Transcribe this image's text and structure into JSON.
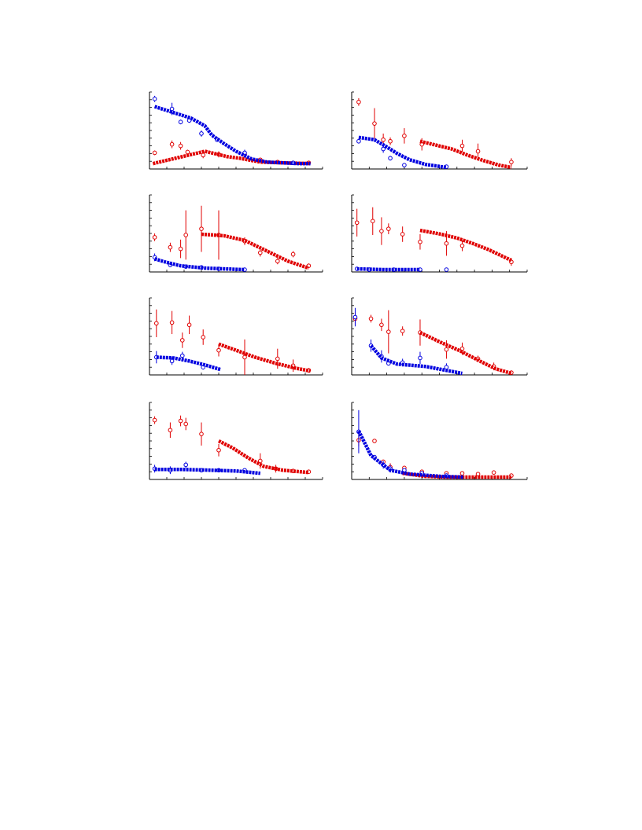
{
  "chart_data": [
    {
      "type": "scatter",
      "xlim": [
        0,
        100
      ],
      "ylim": [
        0,
        100
      ],
      "xticks": [
        0,
        10,
        20,
        30,
        40,
        50,
        60,
        70,
        80,
        90,
        100
      ],
      "yticks": [
        0,
        10,
        20,
        30,
        40,
        50,
        60,
        70,
        80,
        90,
        100
      ],
      "series": [
        {
          "color": "#e00000",
          "marker": "open-circle",
          "x": [
            3,
            13,
            18,
            22,
            31,
            40,
            55,
            64,
            74,
            83,
            92
          ],
          "values": [
            21,
            32,
            30,
            22,
            18,
            19,
            19,
            12,
            9,
            8,
            8
          ],
          "errors": [
            3,
            5,
            5,
            3,
            4,
            4,
            3,
            2,
            null,
            null,
            null
          ]
        },
        {
          "color": "#e00000",
          "marker": "line",
          "x": [
            2,
            32,
            45,
            52,
            64,
            77,
            93
          ],
          "values": [
            7,
            23,
            16,
            14,
            9,
            8,
            7
          ]
        },
        {
          "color": "#0000e0",
          "marker": "open-circle",
          "x": [
            3,
            13,
            18,
            23,
            30,
            39,
            55,
            83
          ],
          "values": [
            91,
            78,
            61,
            63,
            46,
            38,
            21,
            8
          ],
          "errors": [
            4,
            8,
            3,
            3,
            4,
            null,
            4,
            null
          ]
        },
        {
          "color": "#0000e0",
          "marker": "line",
          "x": [
            3,
            24,
            32,
            36,
            43,
            50,
            59,
            68,
            86,
            93
          ],
          "values": [
            81,
            66,
            56,
            44,
            33,
            23,
            13,
            9,
            7,
            7
          ]
        }
      ]
    },
    {
      "type": "scatter",
      "xlim": [
        0,
        100
      ],
      "ylim": [
        0,
        100
      ],
      "xticks": [
        0,
        10,
        20,
        30,
        40,
        50,
        60,
        70,
        80,
        90,
        100
      ],
      "yticks": [
        0,
        10,
        20,
        30,
        40,
        50,
        60,
        70,
        80,
        90,
        100
      ],
      "series": [
        {
          "color": "#e00000",
          "marker": "open-circle",
          "x": [
            4,
            13,
            18,
            22,
            30,
            40,
            63,
            72,
            91
          ],
          "values": [
            87,
            59,
            38,
            36,
            43,
            32,
            30,
            23,
            9
          ],
          "errors": [
            5,
            20,
            8,
            5,
            10,
            8,
            8,
            10,
            5
          ]
        },
        {
          "color": "#e00000",
          "marker": "line",
          "x": [
            39,
            48,
            57,
            66,
            75,
            84,
            91
          ],
          "values": [
            36,
            31,
            26,
            18,
            11,
            5,
            2
          ]
        },
        {
          "color": "#0000e0",
          "marker": "open-circle",
          "x": [
            4,
            18,
            22,
            30,
            54
          ],
          "values": [
            36,
            26,
            14,
            5,
            3
          ],
          "errors": [
            3,
            5,
            3,
            null,
            null
          ]
        },
        {
          "color": "#0000e0",
          "marker": "line",
          "x": [
            4,
            13,
            19,
            26,
            33,
            42,
            54
          ],
          "values": [
            41,
            38,
            30,
            20,
            12,
            6,
            2
          ]
        }
      ]
    },
    {
      "type": "scatter",
      "xlim": [
        0,
        100
      ],
      "ylim": [
        0,
        100
      ],
      "xticks": [
        0,
        10,
        20,
        30,
        40,
        50,
        60,
        70,
        80,
        90,
        100
      ],
      "yticks": [
        0,
        10,
        20,
        30,
        40,
        50,
        60,
        70,
        80,
        90,
        100
      ],
      "series": [
        {
          "color": "#e00000",
          "marker": "open-circle",
          "x": [
            3,
            12,
            18,
            21,
            30,
            40,
            55,
            64,
            74,
            83,
            92
          ],
          "values": [
            45,
            32,
            30,
            48,
            56,
            48,
            40,
            25,
            14,
            23,
            8
          ],
          "errors": [
            5,
            6,
            12,
            32,
            30,
            32,
            5,
            5,
            4,
            4,
            3
          ]
        },
        {
          "color": "#e00000",
          "marker": "line",
          "x": [
            30,
            43,
            55,
            68,
            80,
            92
          ],
          "values": [
            49,
            47,
            41,
            27,
            14,
            5
          ]
        },
        {
          "color": "#0000e0",
          "marker": "open-circle",
          "x": [
            3,
            12,
            21,
            30,
            40,
            55
          ],
          "values": [
            19,
            9,
            7,
            6,
            4,
            3
          ],
          "errors": [
            5,
            null,
            null,
            null,
            null,
            null
          ]
        },
        {
          "color": "#0000e0",
          "marker": "line",
          "x": [
            3,
            9,
            18,
            32,
            55
          ],
          "values": [
            17,
            13,
            8,
            5,
            3
          ]
        }
      ]
    },
    {
      "type": "scatter",
      "xlim": [
        0,
        100
      ],
      "ylim": [
        0,
        100
      ],
      "xticks": [
        0,
        10,
        20,
        30,
        40,
        50,
        60,
        70,
        80,
        90,
        100
      ],
      "yticks": [
        0,
        10,
        20,
        30,
        40,
        50,
        60,
        70,
        80,
        90,
        100
      ],
      "series": [
        {
          "color": "#e00000",
          "marker": "open-circle",
          "x": [
            3,
            12,
            17,
            21,
            29,
            39,
            54,
            63,
            91
          ],
          "values": [
            64,
            66,
            53,
            56,
            49,
            39,
            37,
            34,
            13
          ],
          "errors": [
            18,
            18,
            18,
            7,
            10,
            10,
            16,
            7,
            5
          ]
        },
        {
          "color": "#e00000",
          "marker": "line",
          "x": [
            39,
            51,
            60,
            69,
            78,
            91
          ],
          "values": [
            54,
            49,
            44,
            37,
            29,
            15
          ]
        },
        {
          "color": "#0000e0",
          "marker": "open-circle",
          "x": [
            3,
            10,
            24,
            39,
            54
          ],
          "values": [
            4,
            3,
            3,
            3,
            3
          ],
          "errors": [
            null,
            null,
            null,
            null,
            null
          ]
        },
        {
          "color": "#0000e0",
          "marker": "line",
          "x": [
            3,
            19,
            39
          ],
          "values": [
            4,
            3,
            3
          ]
        }
      ]
    },
    {
      "type": "scatter",
      "xlim": [
        0,
        100
      ],
      "ylim": [
        0,
        100
      ],
      "xticks": [
        0,
        10,
        20,
        30,
        40,
        50,
        60,
        70,
        80,
        90,
        100
      ],
      "yticks": [
        0,
        10,
        20,
        30,
        40,
        50,
        60,
        70,
        80,
        90,
        100
      ],
      "series": [
        {
          "color": "#e00000",
          "marker": "open-circle",
          "x": [
            4,
            13,
            19,
            23,
            31,
            40,
            55,
            74,
            83,
            92
          ],
          "values": [
            67,
            68,
            45,
            65,
            49,
            32,
            23,
            21,
            12,
            6
          ],
          "errors": [
            18,
            15,
            10,
            12,
            10,
            8,
            23,
            13,
            8,
            3
          ]
        },
        {
          "color": "#e00000",
          "marker": "line",
          "x": [
            40,
            50,
            61,
            73,
            84,
            93
          ],
          "values": [
            40,
            32,
            23,
            15,
            9,
            5
          ]
        },
        {
          "color": "#0000e0",
          "marker": "open-circle",
          "x": [
            4,
            13,
            19,
            31
          ],
          "values": [
            23,
            18,
            25,
            10
          ],
          "errors": [
            8,
            5,
            5,
            3
          ]
        },
        {
          "color": "#0000e0",
          "marker": "line",
          "x": [
            4,
            14,
            23,
            32,
            41
          ],
          "values": [
            23,
            22,
            18,
            13,
            7
          ]
        }
      ]
    },
    {
      "type": "scatter",
      "xlim": [
        0,
        100
      ],
      "ylim": [
        0,
        100
      ],
      "xticks": [
        0,
        10,
        20,
        30,
        40,
        50,
        60,
        70,
        80,
        90,
        100
      ],
      "yticks": [
        0,
        10,
        20,
        30,
        40,
        50,
        60,
        70,
        80,
        90,
        100
      ],
      "series": [
        {
          "color": "#e00000",
          "marker": "open-circle",
          "x": [
            2,
            11,
            17,
            21,
            29,
            39,
            54,
            63,
            72,
            81,
            91
          ],
          "values": [
            73,
            73,
            65,
            56,
            57,
            55,
            33,
            34,
            21,
            11,
            3
          ],
          "errors": [
            8,
            5,
            8,
            28,
            6,
            17,
            12,
            8,
            4,
            5,
            null
          ]
        },
        {
          "color": "#e00000",
          "marker": "line",
          "x": [
            39,
            51,
            62,
            73,
            82,
            91
          ],
          "values": [
            55,
            42,
            31,
            18,
            8,
            2
          ]
        },
        {
          "color": "#0000e0",
          "marker": "open-circle",
          "x": [
            2,
            11,
            17,
            21,
            29,
            39,
            54
          ],
          "values": [
            75,
            38,
            24,
            15,
            16,
            22,
            10
          ],
          "errors": [
            12,
            8,
            8,
            null,
            5,
            8,
            5
          ]
        },
        {
          "color": "#0000e0",
          "marker": "line",
          "x": [
            11,
            17,
            26,
            42,
            63
          ],
          "values": [
            38,
            22,
            14,
            11,
            2
          ]
        }
      ]
    },
    {
      "type": "scatter",
      "xlim": [
        0,
        100
      ],
      "ylim": [
        0,
        100
      ],
      "xticks": [
        0,
        10,
        20,
        30,
        40,
        50,
        60,
        70,
        80,
        90,
        100
      ],
      "yticks": [
        0,
        10,
        20,
        30,
        40,
        50,
        60,
        70,
        80,
        90,
        100
      ],
      "series": [
        {
          "color": "#e00000",
          "marker": "open-circle",
          "x": [
            3,
            12,
            18,
            21,
            30,
            40,
            64,
            73,
            83,
            92
          ],
          "values": [
            77,
            64,
            76,
            72,
            59,
            38,
            24,
            14,
            11,
            10
          ],
          "errors": [
            5,
            10,
            7,
            8,
            15,
            8,
            10,
            5,
            null,
            null
          ]
        },
        {
          "color": "#e00000",
          "marker": "line",
          "x": [
            40,
            48,
            57,
            66,
            77,
            92
          ],
          "values": [
            50,
            41,
            28,
            17,
            12,
            9
          ]
        },
        {
          "color": "#0000e0",
          "marker": "open-circle",
          "x": [
            3,
            12,
            21,
            30,
            40,
            55
          ],
          "values": [
            14,
            12,
            19,
            12,
            12,
            12
          ],
          "errors": [
            5,
            5,
            4,
            null,
            null,
            null
          ]
        },
        {
          "color": "#0000e0",
          "marker": "line",
          "x": [
            3,
            18,
            36,
            50,
            64
          ],
          "values": [
            13,
            13,
            12,
            11,
            8
          ]
        }
      ]
    },
    {
      "type": "scatter",
      "xlim": [
        0,
        100
      ],
      "ylim": [
        0,
        100
      ],
      "xticks": [
        0,
        10,
        20,
        30,
        40,
        50,
        60,
        70,
        80,
        90,
        100
      ],
      "yticks": [
        0,
        10,
        20,
        30,
        40,
        50,
        60,
        70,
        80,
        90,
        100
      ],
      "series": [
        {
          "color": "#e00000",
          "marker": "open-circle",
          "x": [
            4,
            13,
            18,
            22,
            30,
            40,
            54,
            63,
            72,
            81,
            91
          ],
          "values": [
            51,
            50,
            23,
            16,
            15,
            10,
            8,
            8,
            7,
            9,
            5
          ],
          "errors": [
            8,
            null,
            null,
            5,
            null,
            null,
            null,
            null,
            null,
            null,
            null
          ]
        },
        {
          "color": "#e00000",
          "marker": "line",
          "x": [
            29,
            42,
            55,
            73,
            91
          ],
          "values": [
            8,
            4,
            3,
            3,
            3
          ]
        },
        {
          "color": "#0000e0",
          "marker": "open-circle",
          "x": [
            4,
            13,
            18,
            22,
            30,
            40,
            54
          ],
          "values": [
            62,
            29,
            19,
            14,
            12,
            8,
            5
          ],
          "errors": [
            28,
            null,
            5,
            5,
            null,
            null,
            null
          ]
        },
        {
          "color": "#0000e0",
          "marker": "line",
          "x": [
            4,
            11,
            22,
            33,
            51,
            64
          ],
          "values": [
            63,
            31,
            12,
            7,
            4,
            3
          ]
        }
      ]
    }
  ]
}
